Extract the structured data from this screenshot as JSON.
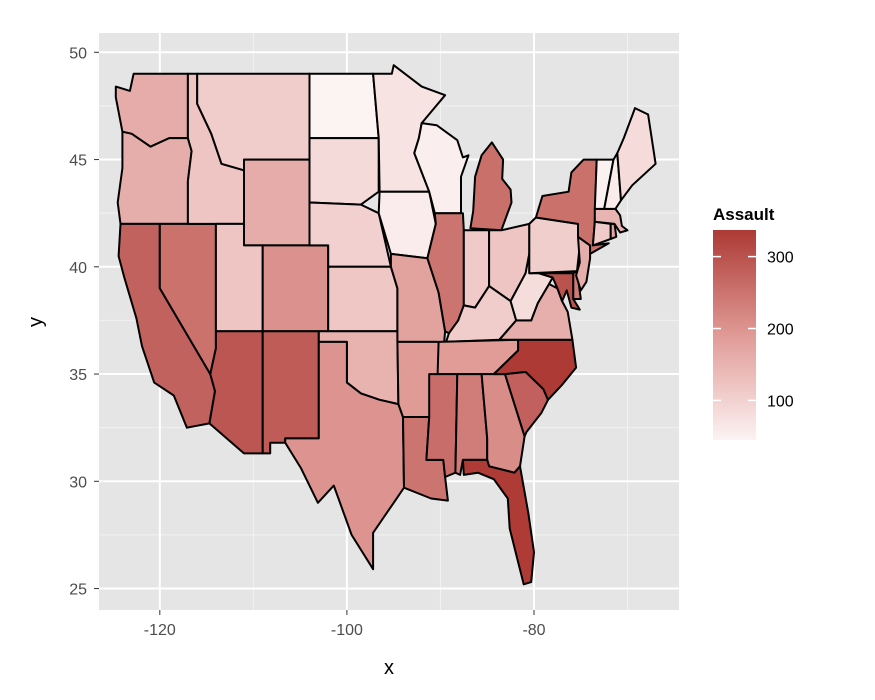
{
  "chart_data": {
    "type": "choropleth",
    "x_ticks": [
      -120,
      -100,
      -80
    ],
    "y_ticks": [
      25,
      30,
      35,
      40,
      45,
      50
    ],
    "xlabel": "x",
    "ylabel": "y",
    "xlim": [
      -126.5,
      -64.5
    ],
    "ylim": [
      24.0,
      50.9
    ],
    "legend": {
      "title": "Assault",
      "range": [
        45,
        337
      ],
      "breaks": [
        100,
        200,
        300
      ],
      "low_color": "#fcf3f3",
      "mid_color": "#e09a96",
      "high_color": "#ad3a35"
    },
    "colors": {
      "panel_bg": "#e5e5e5",
      "grid_major": "#ffffff",
      "grid_minor": "#f2f2f2",
      "border": "#000000"
    },
    "states": [
      {
        "name": "washington",
        "value": 161
      },
      {
        "name": "oregon",
        "value": 159
      },
      {
        "name": "california",
        "value": 276
      },
      {
        "name": "nevada",
        "value": 252
      },
      {
        "name": "idaho",
        "value": 120
      },
      {
        "name": "montana",
        "value": 109
      },
      {
        "name": "wyoming",
        "value": 161
      },
      {
        "name": "utah",
        "value": 120
      },
      {
        "name": "arizona",
        "value": 294
      },
      {
        "name": "colorado",
        "value": 204
      },
      {
        "name": "new mexico",
        "value": 285
      },
      {
        "name": "north dakota",
        "value": 45
      },
      {
        "name": "south dakota",
        "value": 86
      },
      {
        "name": "nebraska",
        "value": 102
      },
      {
        "name": "kansas",
        "value": 115
      },
      {
        "name": "oklahoma",
        "value": 151
      },
      {
        "name": "texas",
        "value": 201
      },
      {
        "name": "minnesota",
        "value": 72
      },
      {
        "name": "iowa",
        "value": 56
      },
      {
        "name": "missouri",
        "value": 178
      },
      {
        "name": "arkansas",
        "value": 190
      },
      {
        "name": "louisiana",
        "value": 249
      },
      {
        "name": "wisconsin",
        "value": 53
      },
      {
        "name": "illinois",
        "value": 249
      },
      {
        "name": "michigan",
        "value": 255
      },
      {
        "name": "indiana",
        "value": 113
      },
      {
        "name": "ohio",
        "value": 120
      },
      {
        "name": "kentucky",
        "value": 109
      },
      {
        "name": "tennessee",
        "value": 188
      },
      {
        "name": "mississippi",
        "value": 259
      },
      {
        "name": "alabama",
        "value": 236
      },
      {
        "name": "georgia",
        "value": 211
      },
      {
        "name": "florida",
        "value": 335
      },
      {
        "name": "south carolina",
        "value": 279
      },
      {
        "name": "north carolina",
        "value": 337
      },
      {
        "name": "virginia",
        "value": 156
      },
      {
        "name": "west virginia",
        "value": 81
      },
      {
        "name": "maryland",
        "value": 300
      },
      {
        "name": "delaware",
        "value": 238
      },
      {
        "name": "pennsylvania",
        "value": 106
      },
      {
        "name": "new jersey",
        "value": 159
      },
      {
        "name": "new york",
        "value": 254
      },
      {
        "name": "connecticut",
        "value": 110
      },
      {
        "name": "rhode island",
        "value": 174
      },
      {
        "name": "massachusetts",
        "value": 149
      },
      {
        "name": "vermont",
        "value": 48
      },
      {
        "name": "new hampshire",
        "value": 57
      },
      {
        "name": "maine",
        "value": 83
      }
    ]
  }
}
